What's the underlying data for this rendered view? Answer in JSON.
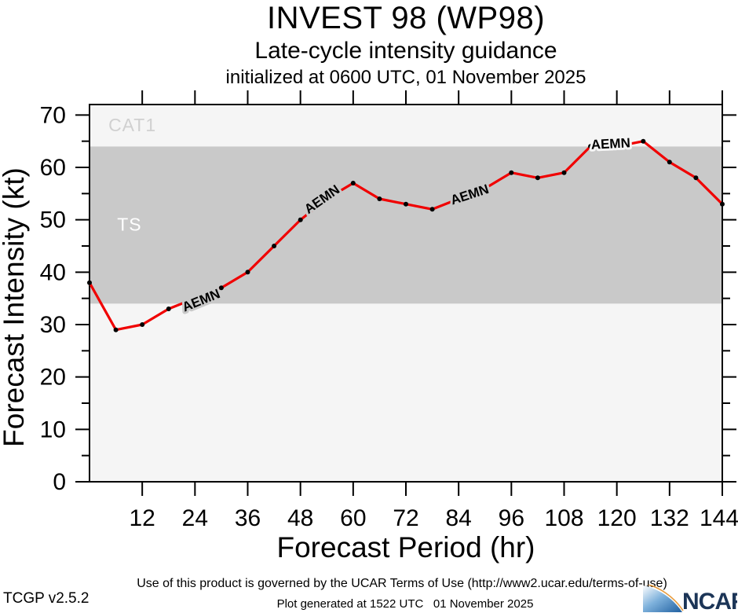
{
  "header": {
    "title": "INVEST 98 (WP98)",
    "subtitle": "Late-cycle intensity guidance",
    "init_line": "initialized at 0600 UTC, 01 November 2025"
  },
  "footer": {
    "terms": "Use of this product is governed by the UCAR Terms of Use (http://www2.ucar.edu/terms-of-use)",
    "version": "TCGP v2.5.2",
    "generated": "Plot generated at 1522 UTC   01 November 2025",
    "logo_text": "NCAR"
  },
  "colors": {
    "line": "#f00000",
    "marker": "#000000",
    "plot_background": "#f5f5f5",
    "ts_band": "#c9c9c9",
    "cat1_label": "#d0d0d0",
    "ts_label": "#ffffff",
    "frame": "#000000",
    "logo_navy": "#1c3557",
    "logo_blue": "#1f5fa0",
    "logo_orange": "#e89b3c"
  },
  "chart_data": {
    "type": "line",
    "title": "INVEST 98 (WP98)",
    "subtitle": "Late-cycle intensity guidance initialized at 0600 UTC, 01 November 2025",
    "xlabel": "Forecast Period (hr)",
    "ylabel": "Forecast Intensity (kt)",
    "xlim": [
      0,
      144
    ],
    "ylim": [
      0,
      72
    ],
    "x_ticks": [
      12,
      24,
      36,
      48,
      60,
      72,
      84,
      96,
      108,
      120,
      132,
      144
    ],
    "y_ticks": [
      0,
      10,
      20,
      30,
      40,
      50,
      60,
      70
    ],
    "y_minor_ticks": [
      5,
      15,
      25,
      35,
      45,
      55,
      65
    ],
    "grid": false,
    "legend_position": "none",
    "plot_bg": "#f5f5f5",
    "bands": [
      {
        "label": "TS",
        "from": 34,
        "to": 64,
        "color": "#c9c9c9",
        "label_color": "#ffffff",
        "label_at": [
          6.3,
          47.9
        ]
      },
      {
        "label": "CAT1",
        "from": 64,
        "to": 72,
        "color": "#f5f5f5",
        "label_color": "#d0d0d0",
        "label_at": [
          4.3,
          66.9
        ]
      }
    ],
    "series": [
      {
        "name": "AEMN",
        "color": "#f00000",
        "x": [
          0,
          6,
          12,
          18,
          24,
          30,
          36,
          42,
          48,
          54,
          60,
          66,
          72,
          78,
          84,
          90,
          96,
          102,
          108,
          114,
          120,
          126,
          132,
          138,
          144
        ],
        "values": [
          38,
          29,
          30,
          33,
          35,
          37,
          40,
          45,
          50,
          54,
          57,
          54,
          53,
          52,
          54,
          56,
          59,
          58,
          59,
          64,
          64,
          65,
          61,
          58,
          53
        ],
        "line_labels": [
          {
            "text": "AEMN",
            "hr": 25.4,
            "kt": 34.6,
            "angle": -22,
            "halo": "#c9c9c9"
          },
          {
            "text": "AEMN",
            "hr": 52.9,
            "kt": 53.9,
            "angle": -35,
            "halo": "#c9c9c9"
          },
          {
            "text": "AEMN",
            "hr": 86.5,
            "kt": 54.8,
            "angle": -18,
            "halo": "#c9c9c9"
          },
          {
            "text": "AEMN",
            "hr": 118.6,
            "kt": 64.5,
            "angle": -3,
            "halo": "#f5f5f5"
          }
        ]
      }
    ]
  }
}
